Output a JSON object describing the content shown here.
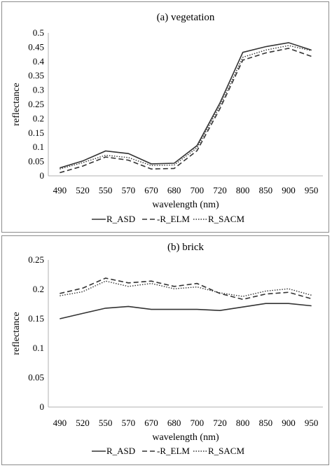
{
  "chart_data": [
    {
      "type": "line",
      "title": "(a) vegetation",
      "xlabel": "wavelength (nm)",
      "ylabel": "reflectance",
      "categories": [
        "490",
        "520",
        "550",
        "570",
        "670",
        "680",
        "700",
        "720",
        "800",
        "850",
        "900",
        "950"
      ],
      "ylim": [
        0,
        0.5
      ],
      "yticks": [
        "0",
        "0.05",
        "0.1",
        "0.15",
        "0.2",
        "0.25",
        "0.3",
        "0.35",
        "0.4",
        "0.45",
        "0.5"
      ],
      "grid": false,
      "legend_position": "bottom",
      "series": [
        {
          "name": "R_ASD",
          "values": [
            0.028,
            0.052,
            0.087,
            0.078,
            0.042,
            0.044,
            0.106,
            0.255,
            0.432,
            0.452,
            0.466,
            0.44
          ],
          "color": "#333333",
          "dash": "solid"
        },
        {
          "name": "-R_ELM",
          "values": [
            0.011,
            0.034,
            0.066,
            0.055,
            0.024,
            0.026,
            0.088,
            0.235,
            0.405,
            0.43,
            0.446,
            0.418
          ],
          "color": "#333333",
          "dash": "dashed"
        },
        {
          "name": "R_SACM",
          "values": [
            0.024,
            0.046,
            0.072,
            0.064,
            0.036,
            0.038,
            0.098,
            0.245,
            0.415,
            0.44,
            0.456,
            0.438
          ],
          "color": "#333333",
          "dash": "dotted"
        }
      ]
    },
    {
      "type": "line",
      "title": "(b) brick",
      "xlabel": "wavelength (nm)",
      "ylabel": "reflectance",
      "categories": [
        "490",
        "520",
        "550",
        "570",
        "670",
        "680",
        "700",
        "720",
        "800",
        "850",
        "900",
        "950"
      ],
      "ylim": [
        0,
        0.25
      ],
      "yticks": [
        "0",
        "0.05",
        "0.1",
        "0.15",
        "0.2",
        "0.25"
      ],
      "grid": false,
      "legend_position": "bottom",
      "series": [
        {
          "name": "R_ASD",
          "values": [
            0.15,
            0.159,
            0.168,
            0.171,
            0.166,
            0.166,
            0.166,
            0.164,
            0.17,
            0.176,
            0.176,
            0.172
          ],
          "color": "#333333",
          "dash": "solid"
        },
        {
          "name": "-R_ELM",
          "values": [
            0.193,
            0.202,
            0.219,
            0.211,
            0.214,
            0.205,
            0.21,
            0.193,
            0.183,
            0.192,
            0.195,
            0.184
          ],
          "color": "#333333",
          "dash": "dashed"
        },
        {
          "name": "R_SACM",
          "values": [
            0.189,
            0.196,
            0.214,
            0.205,
            0.21,
            0.201,
            0.204,
            0.194,
            0.188,
            0.197,
            0.201,
            0.19
          ],
          "color": "#333333",
          "dash": "dotted"
        }
      ]
    }
  ]
}
